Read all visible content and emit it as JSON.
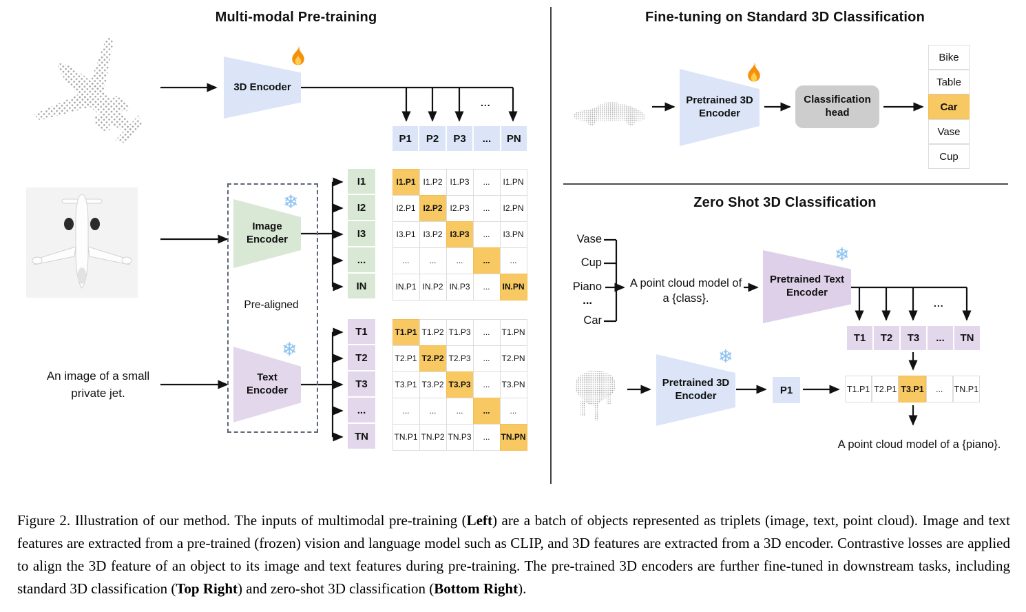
{
  "left": {
    "title": "Multi-modal Pre-training",
    "encoder_3d_label": "3D Encoder",
    "image_encoder_label": "Image Encoder",
    "text_encoder_label": "Text Encoder",
    "pre_aligned_label": "Pre-aligned",
    "text_input": "An image of a small private jet.",
    "p_row": [
      "P1",
      "P2",
      "P3",
      "...",
      "PN"
    ],
    "i_col": [
      "I1",
      "I2",
      "I3",
      "...",
      "IN"
    ],
    "t_col": [
      "T1",
      "T2",
      "T3",
      "...",
      "TN"
    ],
    "i_matrix": [
      [
        "I1.P1",
        "I1.P2",
        "I1.P3",
        "...",
        "I1.PN"
      ],
      [
        "I2.P1",
        "I2.P2",
        "I2.P3",
        "...",
        "I2.PN"
      ],
      [
        "I3.P1",
        "I3.P2",
        "I3.P3",
        "...",
        "I3.PN"
      ],
      [
        "...",
        "...",
        "...",
        "...",
        "..."
      ],
      [
        "IN.P1",
        "IN.P2",
        "IN.P3",
        "...",
        "IN.PN"
      ]
    ],
    "t_matrix": [
      [
        "T1.P1",
        "T1.P2",
        "T1.P3",
        "...",
        "T1.PN"
      ],
      [
        "T2.P1",
        "T2.P2",
        "T2.P3",
        "...",
        "T2.PN"
      ],
      [
        "T3.P1",
        "T3.P2",
        "T3.P3",
        "...",
        "T3.PN"
      ],
      [
        "...",
        "...",
        "...",
        "...",
        "..."
      ],
      [
        "TN.P1",
        "TN.P2",
        "TN.P3",
        "...",
        "TN.PN"
      ]
    ]
  },
  "right_top": {
    "title": "Fine-tuning on Standard 3D Classification",
    "encoder_label": "Pretrained 3D Encoder",
    "head_label": "Classification head",
    "classes": [
      "Bike",
      "Table",
      "Car",
      "Vase",
      "Cup"
    ],
    "highlighted_class": "Car",
    "highlight_index": 2
  },
  "right_bottom": {
    "title": "Zero Shot 3D Classification",
    "classes": [
      "Vase",
      "Cup",
      "Piano",
      "...",
      "Car"
    ],
    "prompt_line1": "A point cloud model of",
    "prompt_line2": "a {class}.",
    "text_encoder_label": "Pretrained Text Encoder",
    "encoder_3d_label": "Pretrained 3D Encoder",
    "t_row": [
      "T1",
      "T2",
      "T3",
      "...",
      "TN"
    ],
    "p1_label": "P1",
    "result_row": [
      "T1.P1",
      "T2.P1",
      "T3.P1",
      "...",
      "TN.P1"
    ],
    "result_highlight_index": 2,
    "output_text": "A point cloud model of a {piano}."
  },
  "dots": "...",
  "icons": {
    "snowflake_char": "❄",
    "fire_icon": "flame",
    "point_cloud_color": "#a6a6a6"
  },
  "colors": {
    "highlight_orange": "#f8c963",
    "light_blue": "#dbe5f7",
    "light_green": "#d9e8d5",
    "light_purple": "#e3d7ec",
    "head_gray": "#cdcdcd"
  },
  "caption": {
    "segments": [
      {
        "text": "Figure 2. Illustration of our method. The inputs of multimodal pre-training (",
        "bold": false
      },
      {
        "text": "Left",
        "bold": true
      },
      {
        "text": ") are a batch of objects represented as triplets (image, text, point cloud). Image and text features are extracted from a pre-trained (frozen) vision and language model such as CLIP, and 3D features are extracted from a 3D encoder. Contrastive losses are applied to align the 3D feature of an object to its image and text features during pre-training. The pre-trained 3D encoders are further fine-tuned in downstream tasks, including standard 3D classification (",
        "bold": false
      },
      {
        "text": "Top Right",
        "bold": true
      },
      {
        "text": ") and zero-shot 3D classification (",
        "bold": false
      },
      {
        "text": "Bottom Right",
        "bold": true
      },
      {
        "text": ").",
        "bold": false
      }
    ]
  }
}
